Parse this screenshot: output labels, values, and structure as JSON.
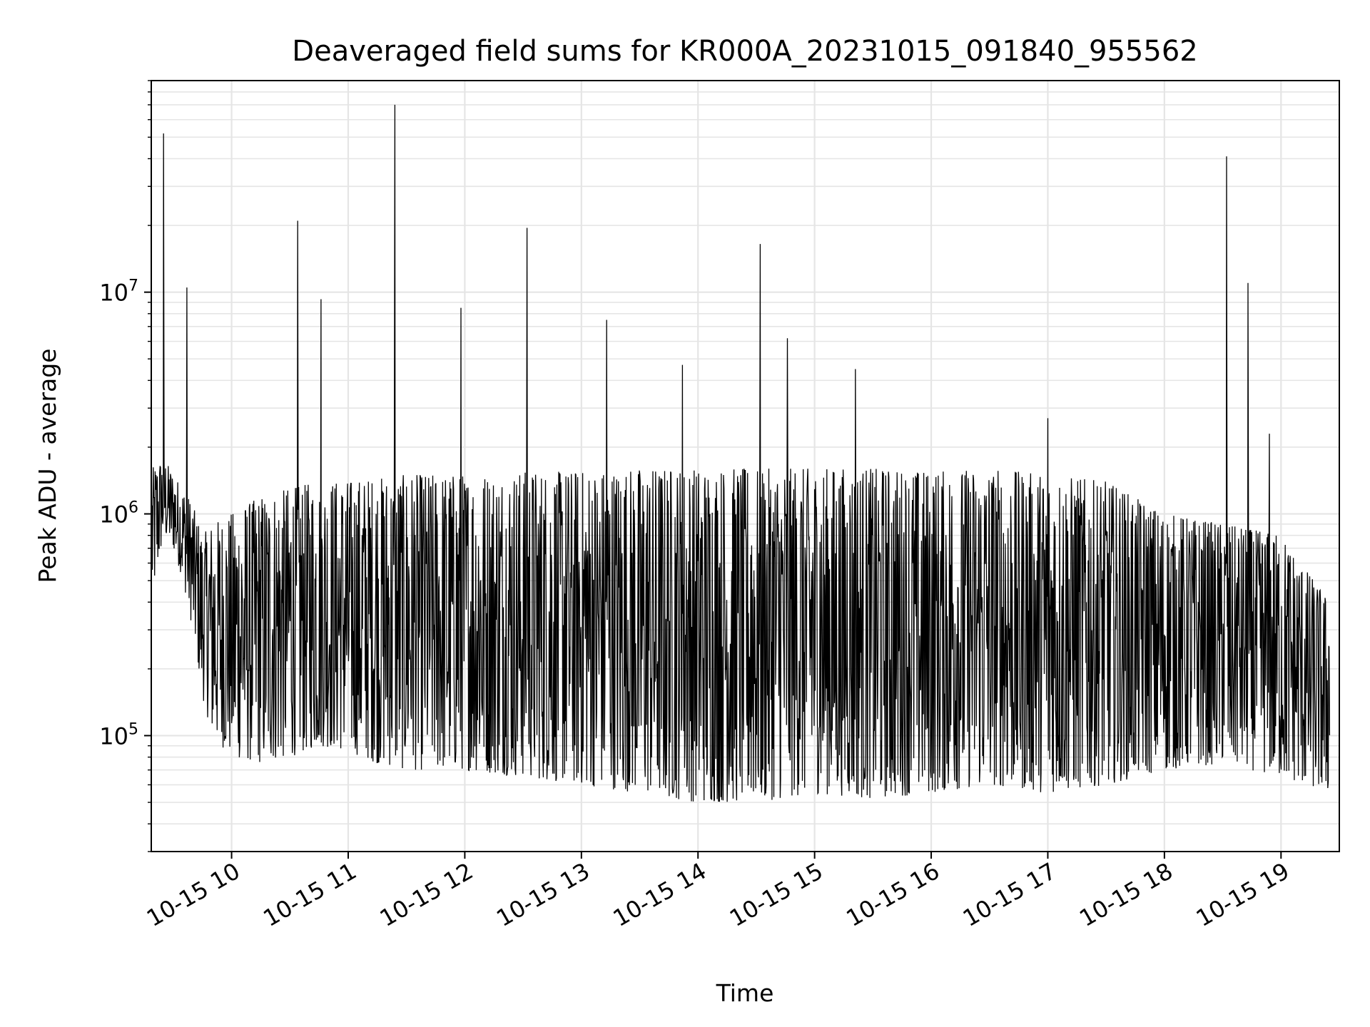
{
  "chart_data": {
    "type": "line",
    "title": "Deaveraged field sums for KR000A_20231015_091840_955562",
    "xlabel": "Time",
    "ylabel": "Peak ADU - average",
    "x_axis": {
      "type": "datetime",
      "range": [
        "2023-10-15 09:18:40",
        "2023-10-15 19:30:00"
      ],
      "ticks": [
        "10-15 10",
        "10-15 11",
        "10-15 12",
        "10-15 13",
        "10-15 14",
        "10-15 15",
        "10-15 16",
        "10-15 17",
        "10-15 18",
        "10-15 19"
      ]
    },
    "y_axis": {
      "scale": "log",
      "range": [
        30000,
        90000000
      ],
      "ticks": [
        {
          "value": 100000,
          "base": "10",
          "exp": "5"
        },
        {
          "value": 1000000,
          "base": "10",
          "exp": "6"
        },
        {
          "value": 10000000,
          "base": "10",
          "exp": "7"
        }
      ]
    },
    "grid": true,
    "line_color": "#000000",
    "series": [
      {
        "x": [
          "2023-10-15 09:19",
          "2023-10-15 09:25",
          "2023-10-15 09:30",
          "2023-10-15 09:35",
          "2023-10-15 09:40",
          "2023-10-15 09:45",
          "2023-10-15 09:50",
          "2023-10-15 10:00",
          "2023-10-15 10:15",
          "2023-10-15 10:30",
          "2023-10-15 10:45",
          "2023-10-15 11:00",
          "2023-10-15 11:15",
          "2023-10-15 11:30",
          "2023-10-15 12:00",
          "2023-10-15 12:30",
          "2023-10-15 13:00",
          "2023-10-15 13:30",
          "2023-10-15 14:00",
          "2023-10-15 14:30",
          "2023-10-15 15:00",
          "2023-10-15 15:30",
          "2023-10-15 16:00",
          "2023-10-15 16:30",
          "2023-10-15 17:00",
          "2023-10-15 17:30",
          "2023-10-15 18:00",
          "2023-10-15 18:30",
          "2023-10-15 19:00",
          "2023-10-15 19:25"
        ],
        "envelope_high": [
          1600000,
          1800000,
          1500000,
          1300000,
          1100000,
          800000,
          900000,
          1000000,
          1200000,
          1300000,
          1400000,
          1400000,
          1450000,
          1500000,
          1500000,
          1550000,
          1550000,
          1600000,
          1600000,
          1600000,
          1600000,
          1600000,
          1550000,
          1600000,
          1500000,
          1400000,
          1000000,
          900000,
          800000,
          400000
        ],
        "envelope_low": [
          400000,
          800000,
          700000,
          500000,
          300000,
          150000,
          100000,
          80000,
          75000,
          80000,
          90000,
          85000,
          75000,
          70000,
          70000,
          65000,
          60000,
          55000,
          50000,
          50000,
          55000,
          52000,
          55000,
          60000,
          55000,
          60000,
          70000,
          75000,
          65000,
          55000
        ]
      }
    ],
    "spikes": [
      {
        "x": "2023-10-15 09:25",
        "y": 52000000
      },
      {
        "x": "2023-10-15 09:37",
        "y": 10500000
      },
      {
        "x": "2023-10-15 10:34",
        "y": 21000000
      },
      {
        "x": "2023-10-15 10:46",
        "y": 9300000
      },
      {
        "x": "2023-10-15 11:24",
        "y": 70000000
      },
      {
        "x": "2023-10-15 11:58",
        "y": 8500000
      },
      {
        "x": "2023-10-15 12:32",
        "y": 19500000
      },
      {
        "x": "2023-10-15 13:13",
        "y": 7500000
      },
      {
        "x": "2023-10-15 13:52",
        "y": 4700000
      },
      {
        "x": "2023-10-15 14:32",
        "y": 16500000
      },
      {
        "x": "2023-10-15 14:46",
        "y": 6200000
      },
      {
        "x": "2023-10-15 15:21",
        "y": 4500000
      },
      {
        "x": "2023-10-15 17:00",
        "y": 2700000
      },
      {
        "x": "2023-10-15 18:32",
        "y": 41000000
      },
      {
        "x": "2023-10-15 18:43",
        "y": 11000000
      },
      {
        "x": "2023-10-15 18:54",
        "y": 2300000
      }
    ]
  }
}
